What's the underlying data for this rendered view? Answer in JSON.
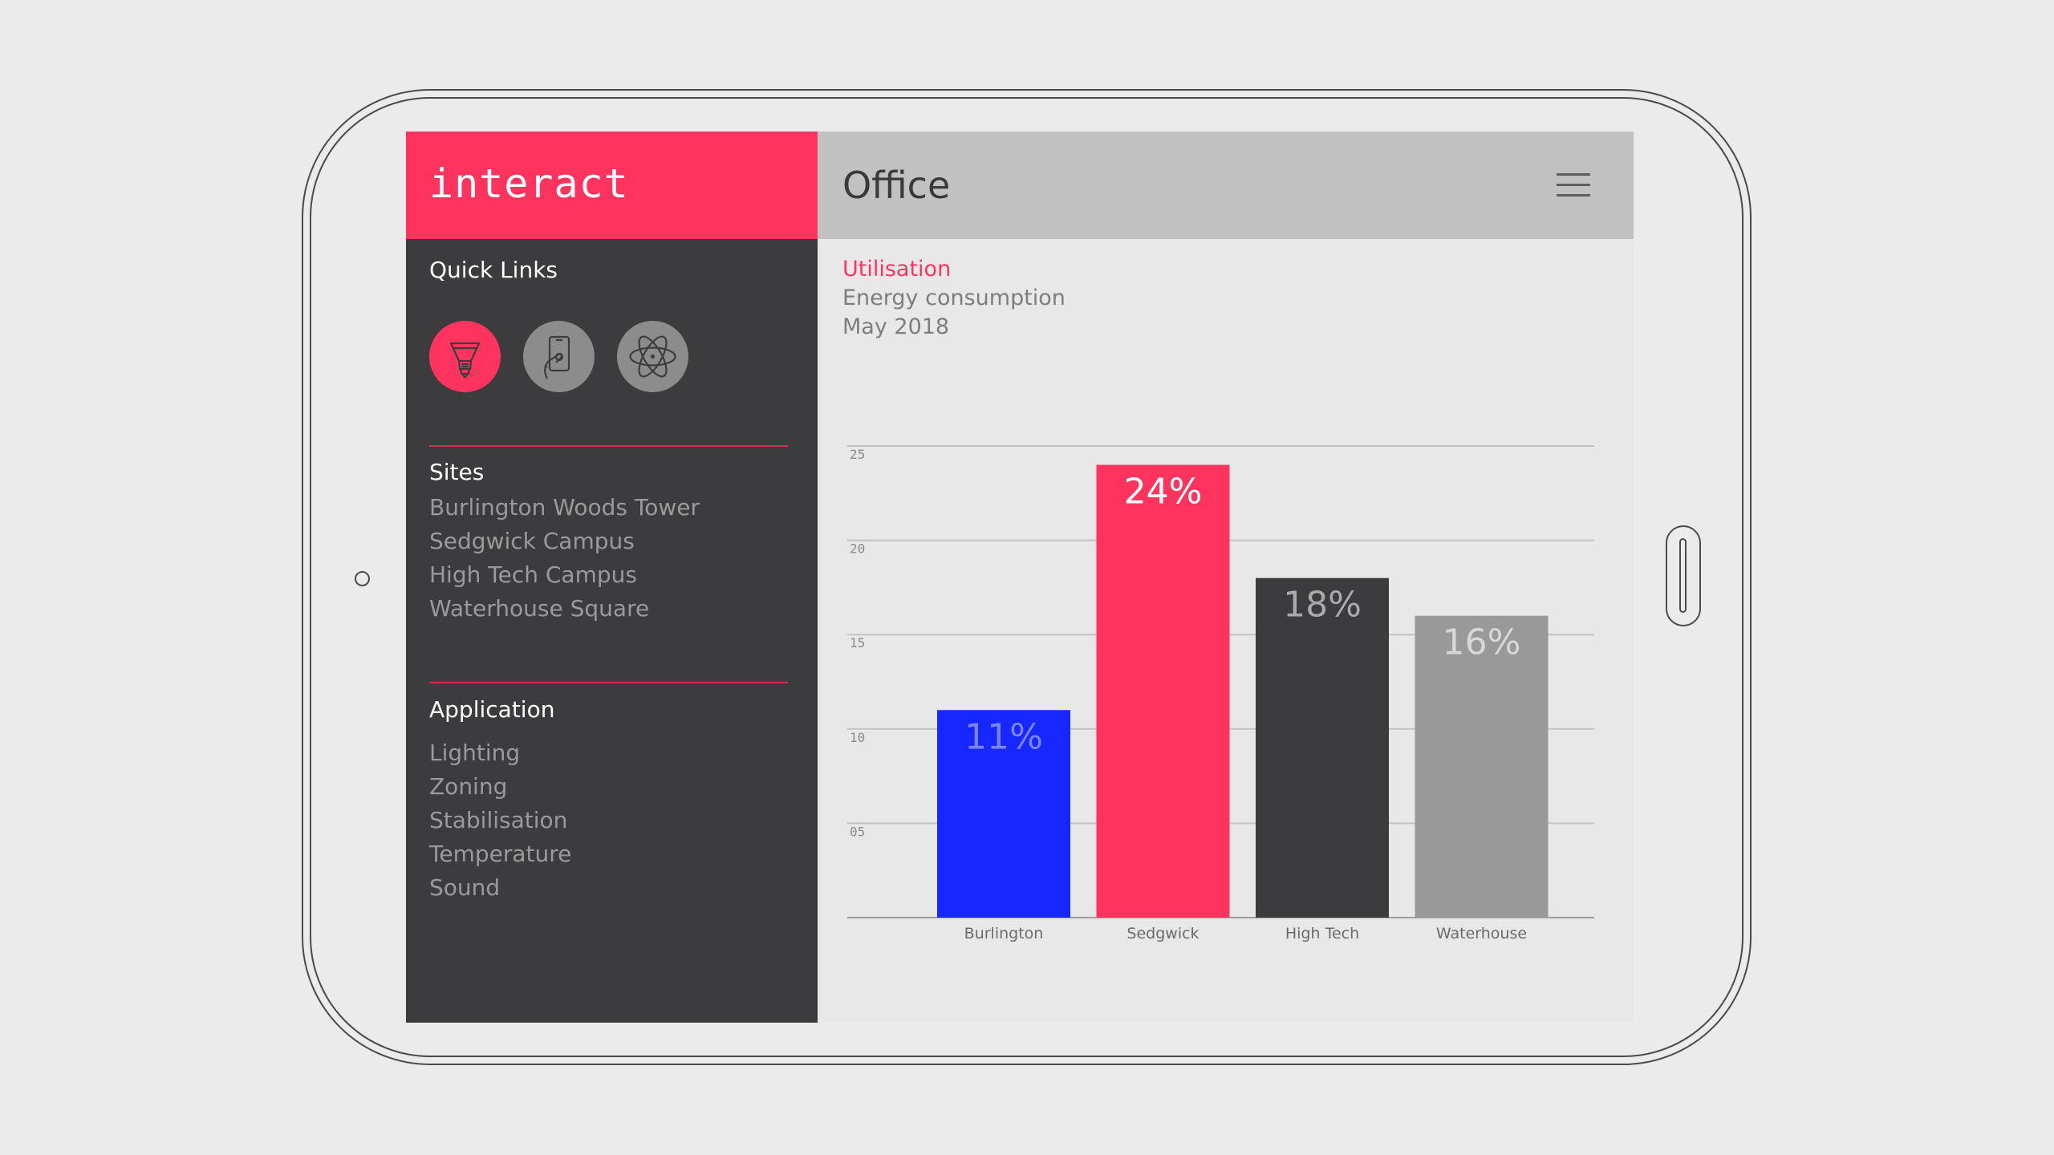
{
  "app": {
    "brand": "interact",
    "page_title": "Office"
  },
  "sidebar": {
    "quick_links_heading": "Quick Links",
    "quick_links": [
      {
        "icon": "light-bulb-icon",
        "active": true
      },
      {
        "icon": "phone-touch-icon",
        "active": false
      },
      {
        "icon": "atom-icon",
        "active": false
      }
    ],
    "sites_heading": "Sites",
    "sites": [
      "Burlington Woods Tower",
      "Sedgwick Campus",
      "High Tech Campus",
      "Waterhouse Square"
    ],
    "application_heading": "Application",
    "applications": [
      "Lighting",
      "Zoning",
      "Stabilisation",
      "Temperature",
      "Sound"
    ]
  },
  "content": {
    "category": "Utilisation",
    "metric": "Energy consumption",
    "period": "May 2018"
  },
  "colors": {
    "accent": "#ff345e",
    "sidebar_bg": "#3c3c3e",
    "header_bg": "#c1c1c1",
    "divider": "#d62d50"
  },
  "chart_data": {
    "type": "bar",
    "categories": [
      "Burlington",
      "Sedgwick",
      "High Tech",
      "Waterhouse"
    ],
    "values": [
      11,
      24,
      18,
      16
    ],
    "data_labels": [
      "11%",
      "24%",
      "18%",
      "16%"
    ],
    "bar_colors": [
      "#1628ff",
      "#ff345e",
      "#3c3c3e",
      "#999999"
    ],
    "label_colors": [
      "#7a86ff",
      "#ffffff",
      "#aaaaaa",
      "#d8d8d8"
    ],
    "yticks": [
      "05",
      "10",
      "15",
      "20",
      "25"
    ],
    "ylim": [
      0,
      25
    ],
    "grid": true
  }
}
